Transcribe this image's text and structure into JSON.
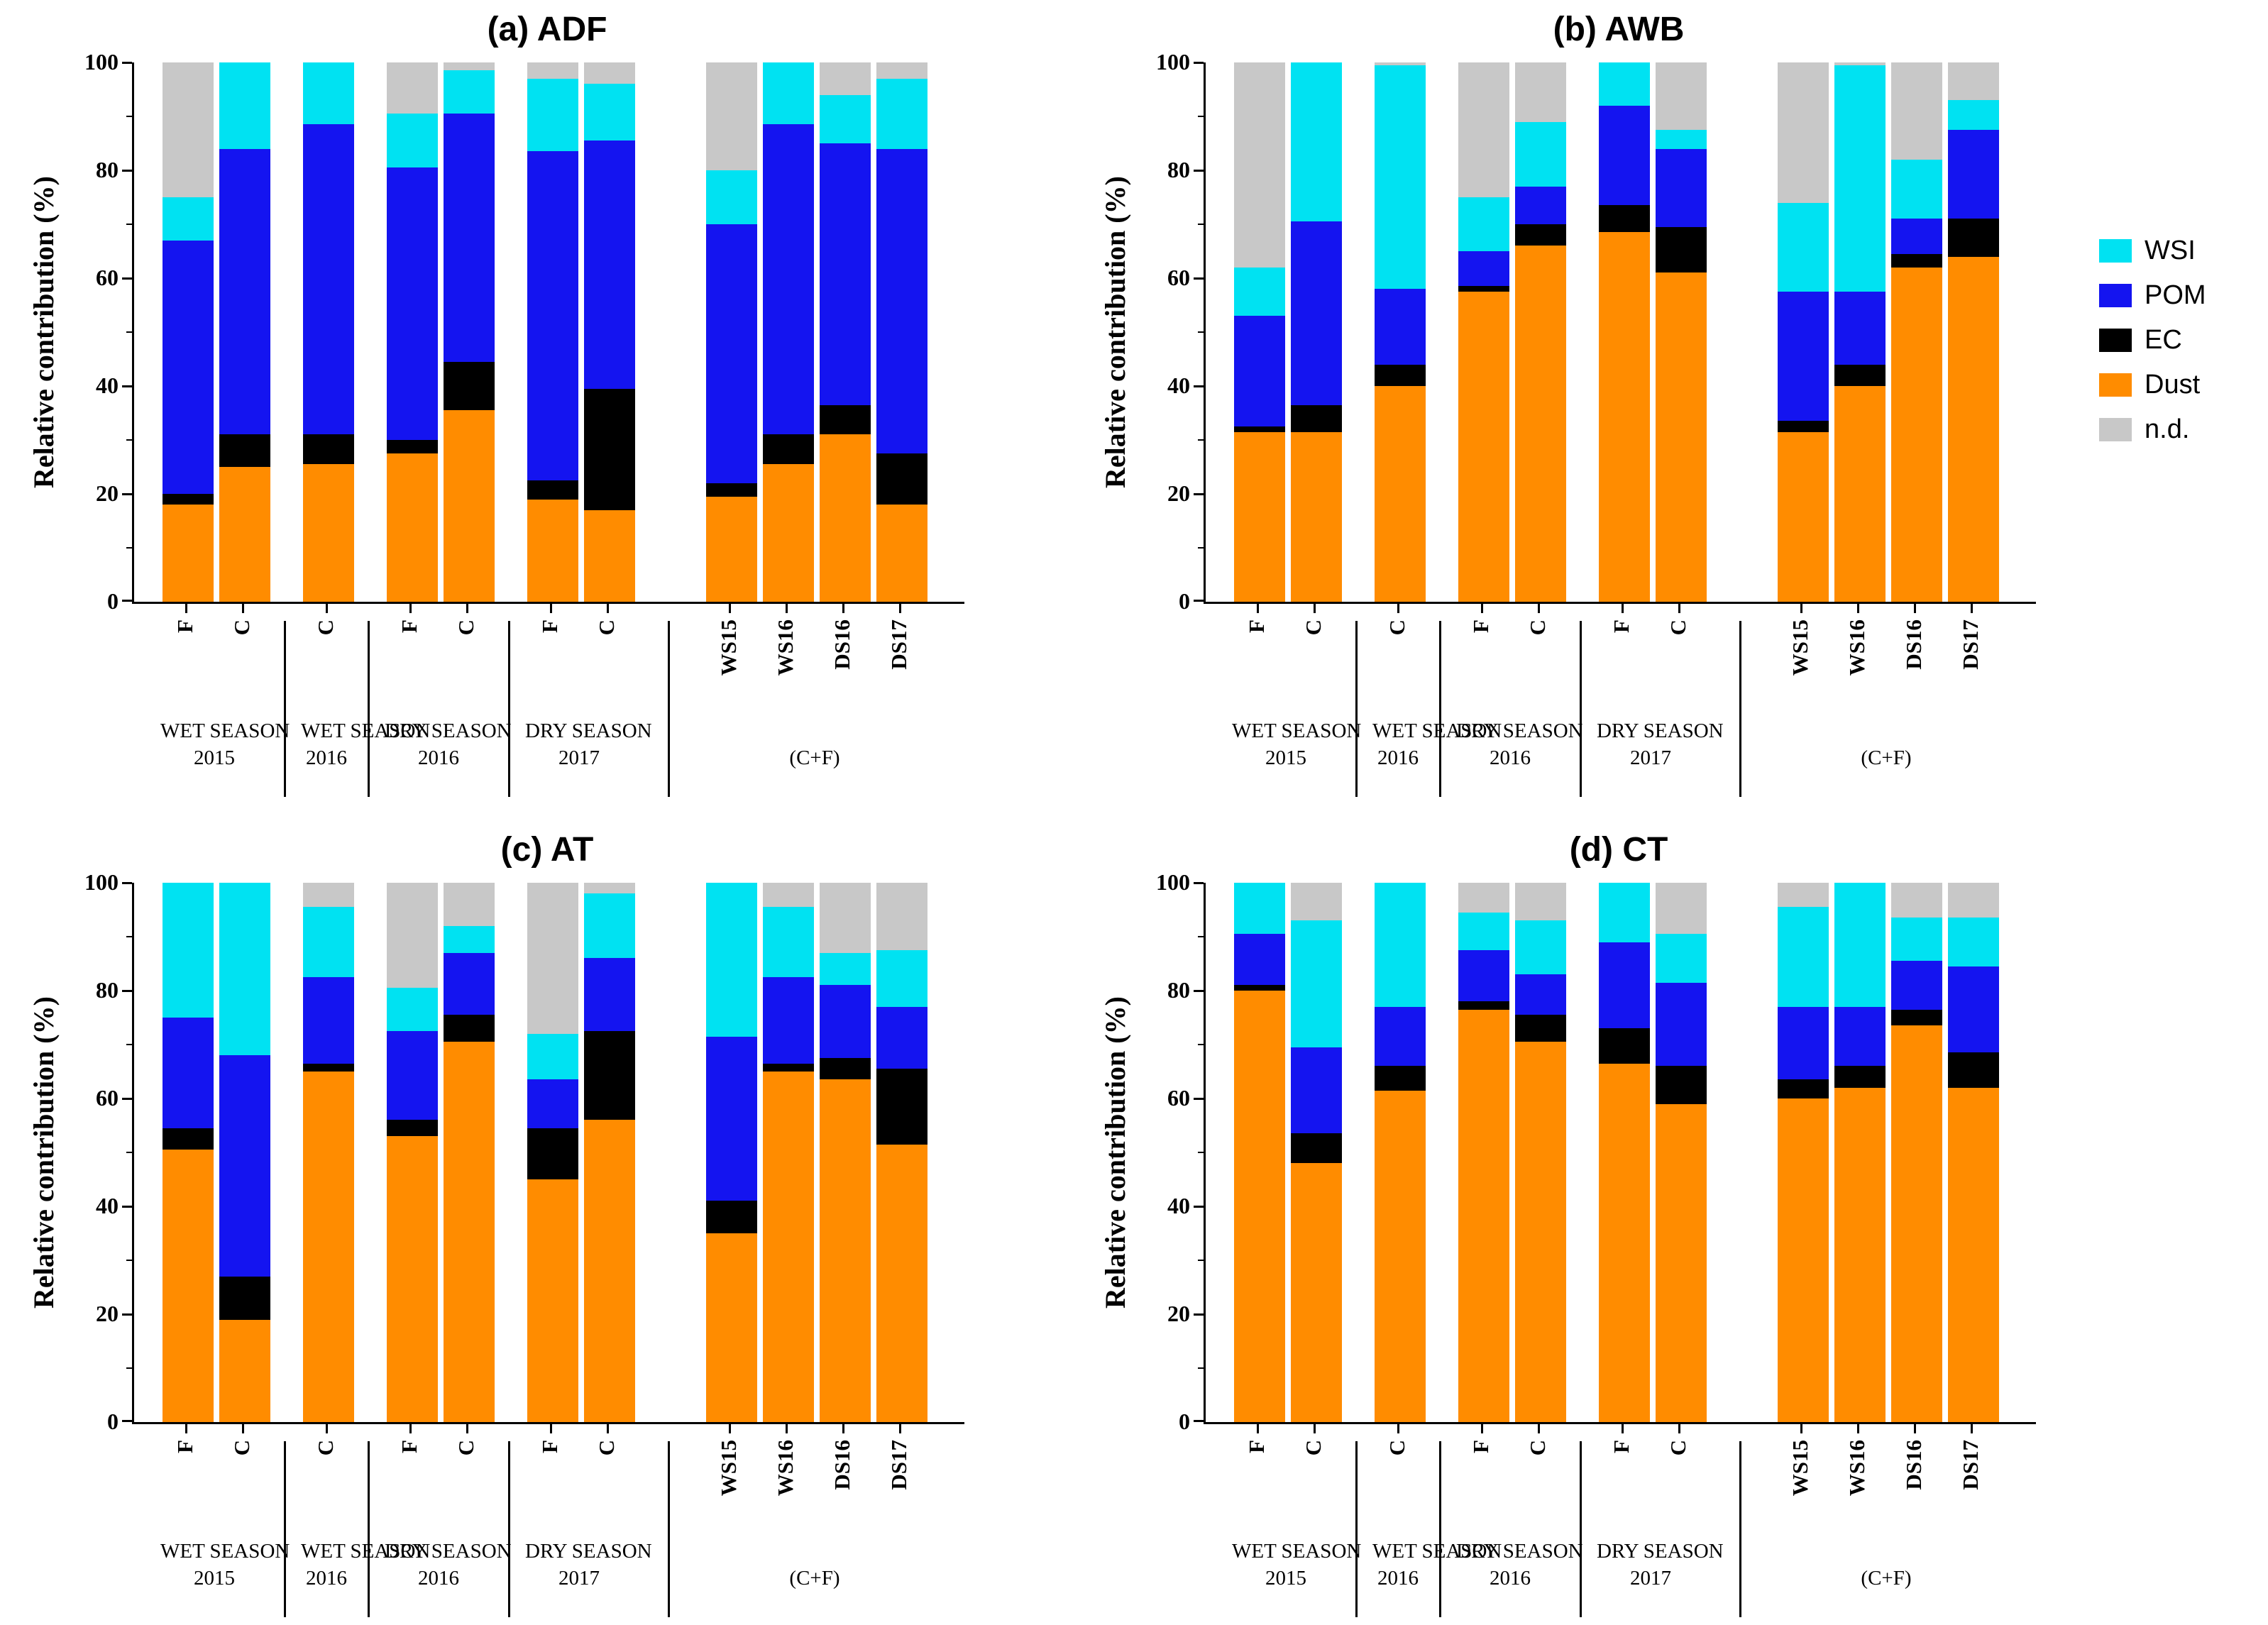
{
  "figure": {
    "ylabel": "Relative contribution (%)"
  },
  "layout": {
    "yticks": [
      0,
      20,
      40,
      60,
      80,
      100
    ],
    "categories": [
      "F",
      "C",
      "C",
      "F",
      "C",
      "F",
      "C",
      "WS15",
      "WS16",
      "DS16",
      "DS17"
    ],
    "groups": [
      {
        "lines": [
          "WET SEASON",
          "2015"
        ],
        "count": 2
      },
      {
        "lines": [
          "WET SEASON",
          "2016"
        ],
        "count": 1
      },
      {
        "lines": [
          "DRY SEASON",
          "2016"
        ],
        "count": 2
      },
      {
        "lines": [
          "DRY SEASON",
          "2017"
        ],
        "count": 2
      },
      {
        "lines": [
          "",
          "(C+F)"
        ],
        "count": 4,
        "big_gap": true
      }
    ]
  },
  "legend": {
    "items": [
      {
        "label": "WSI",
        "color": "#00E2F2"
      },
      {
        "label": "POM",
        "color": "#1414F0"
      },
      {
        "label": "EC",
        "color": "#000000"
      },
      {
        "label": "Dust",
        "color": "#FF8C00"
      },
      {
        "label": "n.d.",
        "color": "#C8C8C8"
      }
    ]
  },
  "chart_data": [
    {
      "type": "bar",
      "stacked": true,
      "title": "(a) ADF",
      "ylabel": "Relative contribution (%)",
      "ylim": [
        0,
        100
      ],
      "categories": [
        "F",
        "C",
        "C",
        "F",
        "C",
        "F",
        "C",
        "WS15",
        "WS16",
        "DS16",
        "DS17"
      ],
      "series": [
        {
          "name": "Dust",
          "values": [
            18,
            25,
            25.5,
            27.5,
            35.5,
            19,
            17,
            19.5,
            25.5,
            31,
            18
          ]
        },
        {
          "name": "EC",
          "values": [
            2,
            6,
            5.5,
            2.5,
            9,
            3.5,
            22.5,
            2.5,
            5.5,
            5.5,
            9.5
          ]
        },
        {
          "name": "POM",
          "values": [
            47,
            53,
            57.5,
            50.5,
            46,
            61,
            46,
            48,
            57.5,
            48.5,
            56.5
          ]
        },
        {
          "name": "WSI",
          "values": [
            8,
            16,
            11.5,
            10,
            8,
            13.5,
            10.5,
            10,
            11.5,
            9,
            13
          ]
        },
        {
          "name": "n.d.",
          "values": [
            25,
            0,
            0,
            9.5,
            1.5,
            3,
            4,
            20,
            0,
            6,
            3
          ]
        }
      ]
    },
    {
      "type": "bar",
      "stacked": true,
      "title": "(b) AWB",
      "ylabel": "Relative contribution (%)",
      "ylim": [
        0,
        100
      ],
      "categories": [
        "F",
        "C",
        "C",
        "F",
        "C",
        "F",
        "C",
        "WS15",
        "WS16",
        "DS16",
        "DS17"
      ],
      "series": [
        {
          "name": "Dust",
          "values": [
            31.5,
            31.5,
            40,
            57.5,
            66,
            68.5,
            61,
            31.5,
            40,
            62,
            64
          ]
        },
        {
          "name": "EC",
          "values": [
            1,
            5,
            4,
            1,
            4,
            5,
            8.5,
            2,
            4,
            2.5,
            7
          ]
        },
        {
          "name": "POM",
          "values": [
            20.5,
            34,
            14,
            6.5,
            7,
            18.5,
            14.5,
            24,
            13.5,
            6.5,
            16.5
          ]
        },
        {
          "name": "WSI",
          "values": [
            9,
            29.5,
            41.5,
            10,
            12,
            8,
            3.5,
            16.5,
            42,
            11,
            5.5
          ]
        },
        {
          "name": "n.d.",
          "values": [
            38,
            0,
            0.5,
            25,
            11,
            0,
            12.5,
            26,
            0.5,
            18,
            7
          ]
        }
      ]
    },
    {
      "type": "bar",
      "stacked": true,
      "title": "(c) AT",
      "ylabel": "Relative contribution (%)",
      "ylim": [
        0,
        100
      ],
      "categories": [
        "F",
        "C",
        "C",
        "F",
        "C",
        "F",
        "C",
        "WS15",
        "WS16",
        "DS16",
        "DS17"
      ],
      "series": [
        {
          "name": "Dust",
          "values": [
            50.5,
            19,
            65,
            53,
            70.5,
            45,
            56,
            35,
            65,
            63.5,
            51.5
          ]
        },
        {
          "name": "EC",
          "values": [
            4,
            8,
            1.5,
            3,
            5,
            9.5,
            16.5,
            6,
            1.5,
            4,
            14
          ]
        },
        {
          "name": "POM",
          "values": [
            20.5,
            41,
            16,
            16.5,
            11.5,
            9,
            13.5,
            30.5,
            16,
            13.5,
            11.5
          ]
        },
        {
          "name": "WSI",
          "values": [
            25,
            32,
            13,
            8,
            5,
            8.5,
            12,
            28.5,
            13,
            6,
            10.5
          ]
        },
        {
          "name": "n.d.",
          "values": [
            0,
            0,
            4.5,
            19.5,
            8,
            28,
            2,
            0,
            4.5,
            13,
            12.5
          ]
        }
      ]
    },
    {
      "type": "bar",
      "stacked": true,
      "title": "(d) CT",
      "ylabel": "Relative contribution (%)",
      "ylim": [
        0,
        100
      ],
      "categories": [
        "F",
        "C",
        "C",
        "F",
        "C",
        "F",
        "C",
        "WS15",
        "WS16",
        "DS16",
        "DS17"
      ],
      "series": [
        {
          "name": "Dust",
          "values": [
            80,
            48,
            61.5,
            76.5,
            70.5,
            66.5,
            59,
            60,
            62,
            73.5,
            62
          ]
        },
        {
          "name": "EC",
          "values": [
            1,
            5.5,
            4.5,
            1.5,
            5,
            6.5,
            7,
            3.5,
            4,
            3,
            6.5
          ]
        },
        {
          "name": "POM",
          "values": [
            9.5,
            16,
            11,
            9.5,
            7.5,
            16,
            15.5,
            13.5,
            11,
            9,
            16
          ]
        },
        {
          "name": "WSI",
          "values": [
            9.5,
            23.5,
            23,
            7,
            10,
            11,
            9,
            18.5,
            23,
            8,
            9
          ]
        },
        {
          "name": "n.d.",
          "values": [
            0,
            7,
            0,
            5.5,
            7,
            0,
            9.5,
            4.5,
            0,
            6.5,
            6.5
          ]
        }
      ]
    }
  ]
}
